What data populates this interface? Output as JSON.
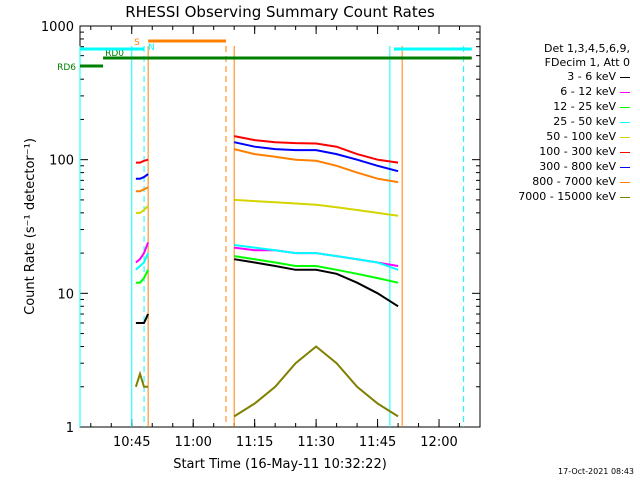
{
  "chart_data": {
    "type": "line",
    "title": "RHESSI Observing Summary Count Rates",
    "xlabel": "Start Time (16-May-11 10:32:22)",
    "ylabel": "Count Rate (s⁻¹ detector⁻¹)",
    "yscale": "log",
    "ylim": [
      1,
      1000
    ],
    "xlim_minutes_clock": [
      "10:32:22",
      "12:10:00"
    ],
    "x_ticks": [
      "10:45",
      "11:00",
      "11:15",
      "11:30",
      "11:45",
      "12:00"
    ],
    "y_ticks": [
      "1",
      "10",
      "100",
      "1000"
    ],
    "legend_header": [
      "Det 1,3,4,5,6,9,",
      "FDecim 1, Att 0"
    ],
    "series": [
      {
        "name": "3 - 6 keV",
        "color": "#000000",
        "segments": [
          {
            "x": [
              "10:46",
              "10:47",
              "10:48",
              "10:49"
            ],
            "y": [
              6,
              6,
              6,
              7
            ]
          },
          {
            "x": [
              "11:10",
              "11:15",
              "11:20",
              "11:25",
              "11:30",
              "11:35",
              "11:40",
              "11:45",
              "11:50"
            ],
            "y": [
              18,
              17,
              16,
              15,
              15,
              14,
              12,
              10,
              8
            ]
          }
        ]
      },
      {
        "name": "6 - 12 keV",
        "color": "#ff00ff",
        "segments": [
          {
            "x": [
              "10:46",
              "10:47",
              "10:48",
              "10:49"
            ],
            "y": [
              17,
              18,
              20,
              24
            ]
          },
          {
            "x": [
              "11:10",
              "11:15",
              "11:20",
              "11:25",
              "11:30",
              "11:35",
              "11:40",
              "11:45",
              "11:50"
            ],
            "y": [
              22,
              21,
              21,
              20,
              20,
              19,
              18,
              17,
              16
            ]
          }
        ]
      },
      {
        "name": "12 - 25 keV",
        "color": "#00ff00",
        "segments": [
          {
            "x": [
              "10:46",
              "10:47",
              "10:48",
              "10:49"
            ],
            "y": [
              12,
              12,
              13,
              15
            ]
          },
          {
            "x": [
              "11:10",
              "11:15",
              "11:20",
              "11:25",
              "11:30",
              "11:35",
              "11:40",
              "11:45",
              "11:50"
            ],
            "y": [
              19,
              18,
              17,
              16,
              16,
              15,
              14,
              13,
              12
            ]
          }
        ]
      },
      {
        "name": "25 - 50 keV",
        "color": "#00ffff",
        "segments": [
          {
            "x": [
              "10:46",
              "10:47",
              "10:48",
              "10:49"
            ],
            "y": [
              15,
              16,
              17,
              20
            ]
          },
          {
            "x": [
              "11:10",
              "11:15",
              "11:20",
              "11:25",
              "11:30",
              "11:35",
              "11:40",
              "11:45",
              "11:50"
            ],
            "y": [
              23,
              22,
              21,
              20,
              20,
              19,
              18,
              17,
              15
            ]
          }
        ]
      },
      {
        "name": "50 - 100 keV",
        "color": "#d4d400",
        "segments": [
          {
            "x": [
              "10:46",
              "10:47",
              "10:48",
              "10:49"
            ],
            "y": [
              40,
              40,
              42,
              45
            ]
          },
          {
            "x": [
              "11:10",
              "11:15",
              "11:20",
              "11:25",
              "11:30",
              "11:35",
              "11:40",
              "11:45",
              "11:50"
            ],
            "y": [
              50,
              49,
              48,
              47,
              46,
              44,
              42,
              40,
              38
            ]
          }
        ]
      },
      {
        "name": "100 - 300 keV",
        "color": "#ff0000",
        "segments": [
          {
            "x": [
              "10:46",
              "10:47",
              "10:48",
              "10:49"
            ],
            "y": [
              95,
              95,
              98,
              100
            ]
          },
          {
            "x": [
              "11:10",
              "11:15",
              "11:20",
              "11:25",
              "11:30",
              "11:35",
              "11:40",
              "11:45",
              "11:50"
            ],
            "y": [
              150,
              140,
              135,
              133,
              132,
              125,
              110,
              100,
              95
            ]
          }
        ]
      },
      {
        "name": "300 - 800 keV",
        "color": "#0000ff",
        "segments": [
          {
            "x": [
              "10:46",
              "10:47",
              "10:48",
              "10:49"
            ],
            "y": [
              72,
              72,
              74,
              78
            ]
          },
          {
            "x": [
              "11:10",
              "11:15",
              "11:20",
              "11:25",
              "11:30",
              "11:35",
              "11:40",
              "11:45",
              "11:50"
            ],
            "y": [
              135,
              125,
              120,
              118,
              118,
              110,
              100,
              90,
              82
            ]
          }
        ]
      },
      {
        "name": "800 - 7000 keV",
        "color": "#ff8000",
        "segments": [
          {
            "x": [
              "10:46",
              "10:47",
              "10:48",
              "10:49"
            ],
            "y": [
              58,
              58,
              60,
              62
            ]
          },
          {
            "x": [
              "11:10",
              "11:15",
              "11:20",
              "11:25",
              "11:30",
              "11:35",
              "11:40",
              "11:45",
              "11:50"
            ],
            "y": [
              120,
              110,
              105,
              100,
              98,
              90,
              80,
              72,
              68
            ]
          }
        ]
      },
      {
        "name": "7000 - 15000 keV",
        "color": "#808000",
        "segments": [
          {
            "x": [
              "10:46",
              "10:47",
              "10:48",
              "10:49"
            ],
            "y": [
              2,
              2.5,
              2,
              2
            ]
          },
          {
            "x": [
              "11:10",
              "11:15",
              "11:20",
              "11:25",
              "11:30",
              "11:35",
              "11:40",
              "11:45",
              "11:50"
            ],
            "y": [
              1.2,
              1.5,
              2,
              3,
              4,
              3,
              2,
              1.5,
              1.2
            ]
          }
        ]
      }
    ],
    "flags": [
      {
        "label": "RD6",
        "color": "#008000",
        "x": [
          "10:32:22",
          "10:38"
        ]
      },
      {
        "label": "RD0",
        "color": "#008000",
        "x": [
          "10:38",
          "12:08"
        ]
      },
      {
        "label": "S",
        "color": "#ff8000",
        "x": [
          "10:49",
          "11:08"
        ]
      },
      {
        "label": "N",
        "color": "#00ffff",
        "x": [
          "10:32:22",
          "10:48"
        ]
      },
      {
        "label": "",
        "color": "#00ffff",
        "x": [
          "11:49",
          "12:08"
        ]
      }
    ],
    "vertical_markers": [
      {
        "x": "10:32:22",
        "color": "#00ffff",
        "style": "solid"
      },
      {
        "x": "10:45",
        "color": "#00ffff",
        "style": "solid"
      },
      {
        "x": "10:48",
        "color": "#00ffff",
        "style": "dashed"
      },
      {
        "x": "10:49",
        "color": "#ff8000",
        "style": "solid"
      },
      {
        "x": "11:08",
        "color": "#ff8000",
        "style": "dashed"
      },
      {
        "x": "11:10",
        "color": "#ff8000",
        "style": "solid"
      },
      {
        "x": "11:48",
        "color": "#00ffff",
        "style": "solid"
      },
      {
        "x": "11:51",
        "color": "#ff8000",
        "style": "solid"
      },
      {
        "x": "12:06",
        "color": "#00ffff",
        "style": "dashed"
      }
    ],
    "grid": false,
    "legend_position": "right"
  },
  "footer_timestamp": "17-Oct-2021 08:43"
}
